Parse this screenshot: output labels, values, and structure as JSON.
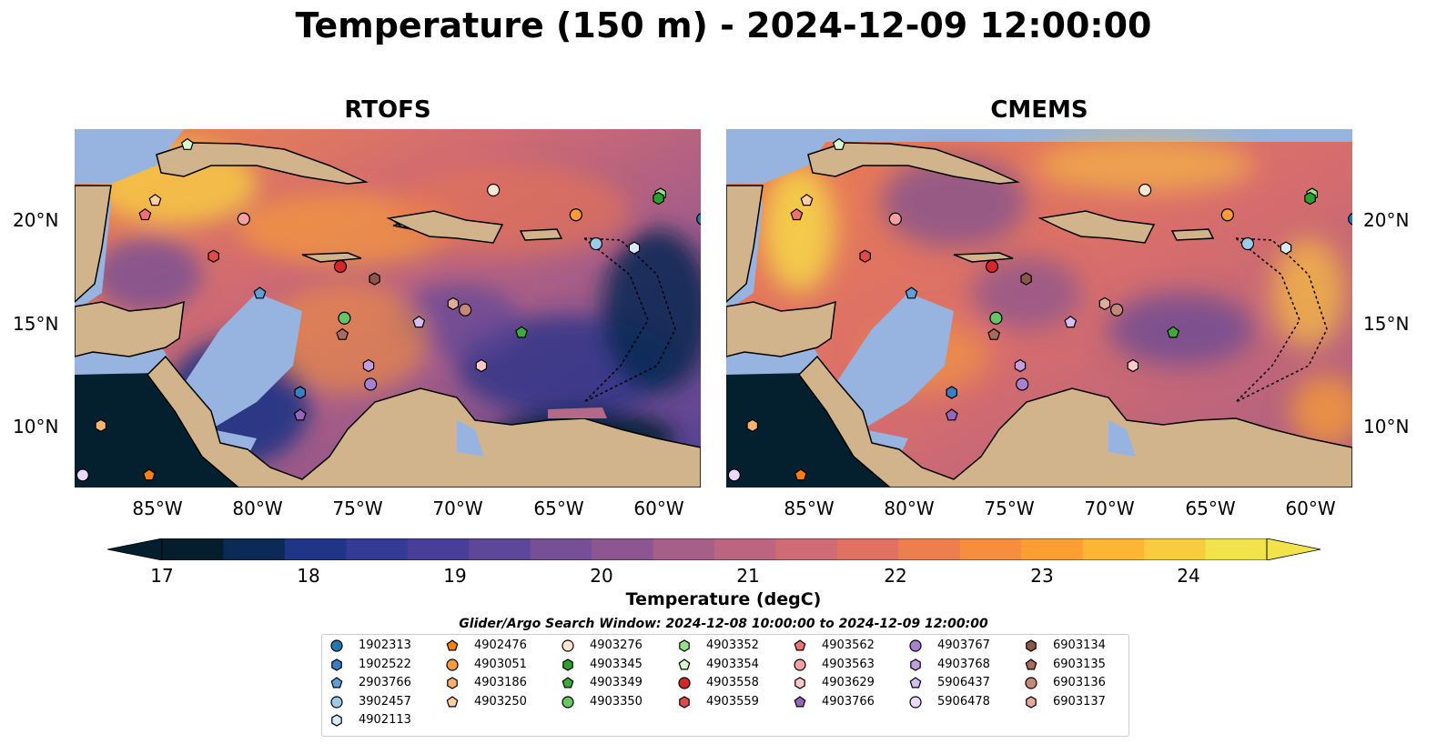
{
  "title": "Temperature (150 m) - 2024-12-09 12:00:00",
  "panels": [
    {
      "title": "RTOFS"
    },
    {
      "title": "CMEMS"
    }
  ],
  "axes": {
    "lat_ticks": [
      "20°N",
      "15°N",
      "10°N"
    ],
    "lon_ticks": [
      "85°W",
      "80°W",
      "75°W",
      "70°W",
      "65°W",
      "60°W"
    ]
  },
  "colorbar": {
    "label": "Temperature (degC)",
    "ticks": [
      "17",
      "18",
      "19",
      "20",
      "21",
      "22",
      "23",
      "24"
    ],
    "colors": [
      "#041e2e",
      "#0b2a55",
      "#1f3585",
      "#343b94",
      "#4a3f98",
      "#5e4698",
      "#774f96",
      "#8e5690",
      "#a65f88",
      "#bb6580",
      "#cf6b74",
      "#e17263",
      "#ef7e4e",
      "#f88d3d",
      "#fc9e32",
      "#fdb534",
      "#f8cc3e",
      "#f2e24c"
    ]
  },
  "window_text": "Glider/Argo Search Window: 2024-12-08 10:00:00 to 2024-12-09 12:00:00",
  "legend": {
    "columns": [
      [
        {
          "id": "1902313",
          "color": "#1f77b4",
          "marker": "circle"
        },
        {
          "id": "1902522",
          "color": "#3a7fc1",
          "marker": "hexagon"
        },
        {
          "id": "2903766",
          "color": "#5e9fd6",
          "marker": "pentagon"
        },
        {
          "id": "3902457",
          "color": "#9ecae9",
          "marker": "circle"
        },
        {
          "id": "4902113",
          "color": "#d6ebf8",
          "marker": "hexagon"
        }
      ],
      [
        {
          "id": "4902476",
          "color": "#ff7f0e",
          "marker": "pentagon"
        },
        {
          "id": "4903051",
          "color": "#fd9b3a",
          "marker": "circle"
        },
        {
          "id": "4903186",
          "color": "#fdb16e",
          "marker": "hexagon"
        },
        {
          "id": "4903250",
          "color": "#fdd0a2",
          "marker": "pentagon"
        }
      ],
      [
        {
          "id": "4903276",
          "color": "#fde7d0",
          "marker": "circle"
        },
        {
          "id": "4903345",
          "color": "#2ca02c",
          "marker": "hexagon"
        },
        {
          "id": "4903349",
          "color": "#3daa3d",
          "marker": "pentagon"
        },
        {
          "id": "4903350",
          "color": "#66c466",
          "marker": "circle"
        }
      ],
      [
        {
          "id": "4903352",
          "color": "#98df8a",
          "marker": "hexagon"
        },
        {
          "id": "4903354",
          "color": "#d9f7cf",
          "marker": "pentagon"
        },
        {
          "id": "4903558",
          "color": "#d62728",
          "marker": "circle"
        },
        {
          "id": "4903559",
          "color": "#e04a4b",
          "marker": "hexagon"
        }
      ],
      [
        {
          "id": "4903562",
          "color": "#ef7272",
          "marker": "pentagon"
        },
        {
          "id": "4903563",
          "color": "#f7a0a0",
          "marker": "circle"
        },
        {
          "id": "4903629",
          "color": "#fcc8c8",
          "marker": "hexagon"
        },
        {
          "id": "4903766",
          "color": "#9467bd",
          "marker": "pentagon"
        }
      ],
      [
        {
          "id": "4903767",
          "color": "#a880cf",
          "marker": "circle"
        },
        {
          "id": "4903768",
          "color": "#c09ee0",
          "marker": "hexagon"
        },
        {
          "id": "5906437",
          "color": "#d5bdef",
          "marker": "pentagon"
        },
        {
          "id": "5906478",
          "color": "#ead9fb",
          "marker": "circle"
        }
      ],
      [
        {
          "id": "6903134",
          "color": "#8c564b",
          "marker": "hexagon"
        },
        {
          "id": "6903135",
          "color": "#a86b5f",
          "marker": "pentagon"
        },
        {
          "id": "6903136",
          "color": "#c48878",
          "marker": "circle"
        },
        {
          "id": "6903137",
          "color": "#e0ab9b",
          "marker": "hexagon"
        }
      ]
    ]
  },
  "map_colors": {
    "land": "#d2b48c",
    "shallow": "#96b4df",
    "deep": "#04202f",
    "coast": "#000000"
  },
  "floats": [
    {
      "id": "4903354",
      "lon": -83.5,
      "lat": 23.6
    },
    {
      "id": "4903250",
      "lon": -85.1,
      "lat": 20.9
    },
    {
      "id": "4903562",
      "lon": -85.6,
      "lat": 20.2
    },
    {
      "id": "4903563",
      "lon": -80.7,
      "lat": 20.0
    },
    {
      "id": "4903276",
      "lon": -68.3,
      "lat": 21.4
    },
    {
      "id": "4903051",
      "lon": -64.2,
      "lat": 20.2
    },
    {
      "id": "4903352",
      "lon": -60.0,
      "lat": 21.2
    },
    {
      "id": "4903345",
      "lon": -60.1,
      "lat": 21.0
    },
    {
      "id": "1902313",
      "lon": -57.9,
      "lat": 20.0
    },
    {
      "id": "3902457",
      "lon": -63.2,
      "lat": 18.8
    },
    {
      "id": "4902113",
      "lon": -61.3,
      "lat": 18.6
    },
    {
      "id": "4903559",
      "lon": -82.2,
      "lat": 18.2
    },
    {
      "id": "4903558",
      "lon": -75.9,
      "lat": 17.7
    },
    {
      "id": "6903134",
      "lon": -74.2,
      "lat": 17.1
    },
    {
      "id": "2903766",
      "lon": -79.9,
      "lat": 16.4
    },
    {
      "id": "4903350",
      "lon": -75.7,
      "lat": 15.2
    },
    {
      "id": "6903135",
      "lon": -75.8,
      "lat": 14.4
    },
    {
      "id": "5906437",
      "lon": -72.0,
      "lat": 15.0
    },
    {
      "id": "6903137",
      "lon": -70.3,
      "lat": 15.9
    },
    {
      "id": "6903136",
      "lon": -69.7,
      "lat": 15.6
    },
    {
      "id": "4903349",
      "lon": -66.9,
      "lat": 14.5
    },
    {
      "id": "4903768",
      "lon": -74.5,
      "lat": 12.9
    },
    {
      "id": "4903629",
      "lon": -68.9,
      "lat": 12.9
    },
    {
      "id": "4903767",
      "lon": -74.4,
      "lat": 12.0
    },
    {
      "id": "1902522",
      "lon": -77.9,
      "lat": 11.6
    },
    {
      "id": "4903766",
      "lon": -77.9,
      "lat": 10.5
    },
    {
      "id": "4903186",
      "lon": -87.8,
      "lat": 10.0
    },
    {
      "id": "5906478",
      "lon": -88.7,
      "lat": 7.6
    },
    {
      "id": "4902476",
      "lon": -85.4,
      "lat": 7.6
    }
  ]
}
